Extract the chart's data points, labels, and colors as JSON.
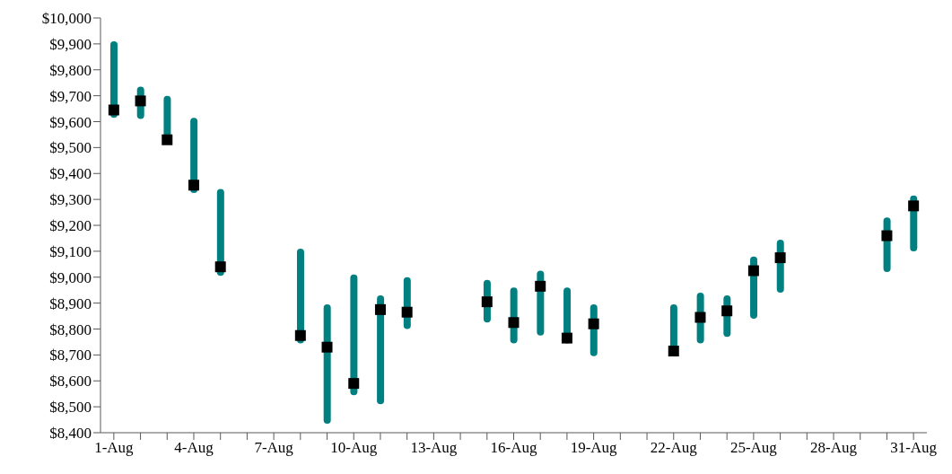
{
  "chart_data": {
    "type": "bar",
    "categories": [
      "1-Aug",
      null,
      null,
      "4-Aug",
      null,
      null,
      "7-Aug",
      null,
      null,
      "10-Aug",
      null,
      null,
      "13-Aug",
      null,
      null,
      "16-Aug",
      null,
      null,
      "19-Aug",
      null,
      null,
      "22-Aug",
      null,
      null,
      "25-Aug",
      null,
      null,
      "28-Aug",
      null,
      null,
      "31-Aug"
    ],
    "series": [
      {
        "color": "#008080",
        "base": [
          9615,
          9610,
          9530,
          9325,
          9005,
          null,
          null,
          8745,
          8435,
          8545,
          8510,
          8800,
          null,
          null,
          8825,
          8745,
          8775,
          8745,
          8695,
          null,
          null,
          8715,
          8745,
          8770,
          8840,
          8940,
          null,
          null,
          null,
          9020,
          9100
        ],
        "values": [
          295,
          125,
          170,
          290,
          335,
          null,
          null,
          365,
          460,
          465,
          420,
          200,
          null,
          null,
          165,
          215,
          250,
          215,
          200,
          null,
          null,
          180,
          195,
          160,
          240,
          205,
          null,
          null,
          null,
          210,
          215
        ]
      },
      {
        "type": "scatter",
        "color": "#000000",
        "marker": "square",
        "values": [
          9645,
          9680,
          9530,
          9355,
          9040,
          null,
          null,
          8775,
          8730,
          8590,
          8875,
          8865,
          null,
          null,
          8905,
          8825,
          8965,
          8765,
          8820,
          null,
          null,
          8715,
          8845,
          8870,
          9025,
          9075,
          null,
          null,
          null,
          9160,
          9275
        ]
      }
    ],
    "ylim": [
      8400,
      10000
    ],
    "yticks": [
      {
        "value": 8400,
        "label": "$8,400"
      },
      {
        "value": 8500,
        "label": "$8,500"
      },
      {
        "value": 8600,
        "label": "$8,600"
      },
      {
        "value": 8700,
        "label": "$8,700"
      },
      {
        "value": 8800,
        "label": "$8,800"
      },
      {
        "value": 8900,
        "label": "$8,900"
      },
      {
        "value": 9000,
        "label": "$9,000"
      },
      {
        "value": 9100,
        "label": "$9,100"
      },
      {
        "value": 9200,
        "label": "$9,200"
      },
      {
        "value": 9300,
        "label": "$9,300"
      },
      {
        "value": 9400,
        "label": "$9,400"
      },
      {
        "value": 9500,
        "label": "$9,500"
      },
      {
        "value": 9600,
        "label": "$9,600"
      },
      {
        "value": 9700,
        "label": "$9,700"
      },
      {
        "value": 9800,
        "label": "$9,800"
      },
      {
        "value": 9900,
        "label": "$9,900"
      },
      {
        "value": 10000,
        "label": "$10,000"
      }
    ],
    "grid": false,
    "legend": false
  }
}
